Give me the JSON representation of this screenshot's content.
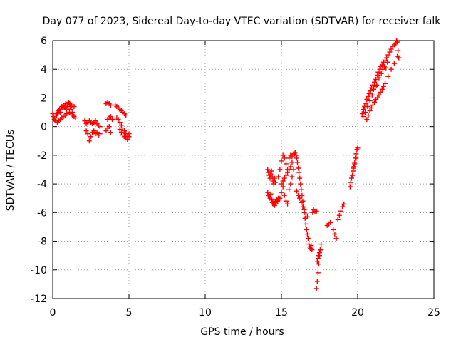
{
  "chart_data": {
    "type": "scatter",
    "title": "Day 077 of 2023, Sidereal Day-to-day VTEC variation (SDTVAR) for receiver falk",
    "xlabel": "GPS time / hours",
    "ylabel": "SDTVAR / TECUs",
    "xlim": [
      0,
      25
    ],
    "ylim": [
      -12,
      6
    ],
    "x_ticks": [
      "0",
      "5",
      "10",
      "15",
      "20",
      "25"
    ],
    "y_ticks": [
      "6",
      "4",
      "2",
      "0",
      "-2",
      "-4",
      "-6",
      "-8",
      "-10",
      "-12"
    ],
    "grid": true,
    "legend": "none",
    "marker": "plus",
    "color": "#ff0000",
    "series": [
      {
        "x": [
          0.0,
          0.05,
          0.1,
          0.15,
          0.2,
          0.25,
          0.3,
          0.35,
          0.4,
          0.45,
          0.5,
          0.55,
          0.6,
          0.65,
          0.7,
          0.75,
          0.8,
          0.85,
          0.9,
          0.95,
          1.0,
          1.05,
          1.1,
          1.15,
          1.2,
          1.25,
          1.3,
          1.35,
          1.4,
          0.3,
          0.4,
          0.5,
          0.6,
          0.7,
          0.8,
          0.9,
          1.0,
          1.1,
          1.2,
          1.3,
          1.4,
          1.5
        ],
        "y": [
          0.9,
          0.7,
          0.5,
          0.4,
          0.6,
          0.8,
          0.9,
          1.0,
          1.1,
          1.2,
          1.0,
          1.3,
          1.4,
          1.3,
          1.5,
          1.3,
          1.4,
          1.6,
          1.2,
          1.5,
          1.3,
          1.7,
          1.6,
          1.4,
          1.2,
          1.5,
          1.0,
          0.8,
          1.4,
          0.3,
          0.4,
          0.5,
          0.6,
          0.7,
          0.8,
          0.9,
          0.9,
          1.0,
          0.9,
          0.8,
          0.7,
          0.6
        ]
      },
      {
        "x": [
          2.1,
          2.2,
          2.3,
          2.4,
          2.5,
          2.6,
          2.7,
          2.8,
          2.9,
          3.0,
          3.1,
          2.2,
          2.3,
          2.4,
          2.5,
          2.6,
          2.7,
          2.8,
          2.9,
          3.0,
          3.1
        ],
        "y": [
          0.4,
          0.2,
          0.3,
          0.4,
          0.3,
          0.2,
          0.3,
          0.4,
          0.2,
          0.1,
          0.0,
          -0.3,
          -0.5,
          -1.0,
          -0.7,
          -0.4,
          -0.3,
          -0.5,
          -0.4,
          -0.6,
          -0.5
        ]
      },
      {
        "x": [
          3.5,
          3.6,
          3.7,
          3.8,
          3.6,
          3.7,
          3.8,
          3.9,
          3.5,
          3.6,
          3.7,
          3.8
        ],
        "y": [
          1.6,
          1.7,
          1.6,
          1.5,
          0.5,
          0.6,
          0.7,
          0.5,
          -0.3,
          -0.1,
          0.0,
          -0.4
        ]
      },
      {
        "x": [
          4.1,
          4.2,
          4.3,
          4.4,
          4.5,
          4.6,
          4.7,
          4.8,
          4.2,
          4.3,
          4.4,
          4.5,
          4.6,
          4.7,
          4.8,
          4.9,
          5.0,
          4.4,
          4.5,
          4.6,
          4.7,
          4.8,
          4.9,
          5.0
        ],
        "y": [
          1.5,
          1.4,
          1.3,
          1.2,
          1.1,
          1.0,
          0.9,
          0.8,
          0.6,
          0.5,
          0.3,
          0.1,
          -0.1,
          -0.3,
          -0.5,
          -0.6,
          -0.5,
          -0.2,
          -0.4,
          -0.6,
          -0.7,
          -0.8,
          -0.9,
          -0.7
        ]
      },
      {
        "x": [
          14.1,
          14.15,
          14.2,
          14.25,
          14.3,
          14.35,
          14.4,
          14.45,
          14.5,
          14.55,
          14.6,
          14.1,
          14.15,
          14.2,
          14.25,
          14.3,
          14.35,
          14.4,
          14.45,
          14.5,
          14.55,
          14.6,
          14.65,
          14.7,
          14.75,
          14.8
        ],
        "y": [
          -3.0,
          -3.2,
          -3.4,
          -3.6,
          -3.3,
          -3.1,
          -3.5,
          -3.8,
          -4.0,
          -3.6,
          -3.9,
          -4.6,
          -4.8,
          -4.9,
          -5.0,
          -4.7,
          -5.1,
          -5.3,
          -5.4,
          -5.2,
          -5.5,
          -5.3,
          -5.4,
          -5.1,
          -5.2,
          -5.0
        ]
      },
      {
        "x": [
          14.8,
          14.9,
          15.0,
          15.1,
          15.2,
          15.3,
          15.4,
          15.5,
          15.6,
          15.7,
          15.8,
          14.9,
          15.0,
          15.1,
          15.2,
          15.3,
          15.4,
          15.5,
          15.6,
          15.7,
          15.8,
          15.0,
          15.1,
          15.2,
          15.3,
          15.4,
          15.5,
          15.6,
          15.7
        ],
        "y": [
          -3.5,
          -3.0,
          -2.4,
          -2.0,
          -2.2,
          -2.6,
          -3.0,
          -2.2,
          -2.0,
          -2.1,
          -1.9,
          -5.0,
          -4.6,
          -4.2,
          -4.8,
          -5.2,
          -5.4,
          -4.4,
          -4.0,
          -3.5,
          -3.0,
          -4.0,
          -3.8,
          -3.6,
          -3.4,
          -3.2,
          -3.0,
          -2.8,
          -2.5
        ]
      },
      {
        "x": [
          15.85,
          15.9,
          15.95,
          16.0,
          16.05,
          16.1,
          16.15,
          16.2,
          16.25,
          16.3,
          16.35,
          16.4,
          16.45,
          16.5,
          16.55,
          16.6,
          16.65,
          16.7,
          16.75,
          16.8,
          16.85,
          16.9,
          16.95,
          17.0,
          17.05,
          17.1,
          17.2,
          17.3,
          16.0,
          16.1,
          16.2,
          16.3,
          16.4,
          16.5,
          16.6,
          16.7
        ],
        "y": [
          -1.9,
          -1.8,
          -2.0,
          -2.2,
          -2.5,
          -2.9,
          -3.2,
          -3.6,
          -4.0,
          -4.4,
          -4.8,
          -5.2,
          -5.6,
          -6.0,
          -6.4,
          -6.8,
          -7.2,
          -7.5,
          -7.8,
          -8.2,
          -8.4,
          -8.5,
          -8.3,
          -8.6,
          -6.0,
          -5.8,
          -5.9,
          -5.9,
          -4.5,
          -4.8,
          -5.0,
          -5.3,
          -5.6,
          -5.8,
          -6.1,
          -6.3
        ]
      },
      {
        "x": [
          17.3,
          17.35,
          17.4,
          17.45,
          17.5,
          17.55,
          17.6,
          17.35,
          17.4,
          17.45,
          17.5,
          17.55
        ],
        "y": [
          -11.3,
          -10.8,
          -10.2,
          -9.6,
          -9.0,
          -8.6,
          -8.2,
          -9.4,
          -9.2,
          -9.0,
          -8.8,
          -8.6
        ]
      },
      {
        "x": [
          18.0,
          18.1,
          18.2,
          18.4,
          18.5,
          18.6,
          18.7,
          18.8,
          18.9,
          19.0,
          19.1
        ],
        "y": [
          -6.9,
          -6.8,
          -6.7,
          -7.2,
          -7.5,
          -7.8,
          -6.5,
          -6.2,
          -5.9,
          -5.6,
          -5.4
        ]
      },
      {
        "x": [
          19.5,
          19.55,
          19.6,
          19.65,
          19.7,
          19.75,
          19.8,
          19.85,
          19.9,
          19.95,
          20.0,
          19.7,
          19.8,
          19.9
        ],
        "y": [
          -4.2,
          -3.9,
          -3.6,
          -3.4,
          -3.1,
          -2.8,
          -2.5,
          -2.2,
          -1.9,
          -1.6,
          -1.5,
          -2.9,
          -2.6,
          -2.2
        ]
      },
      {
        "x": [
          20.3,
          20.35,
          20.4,
          20.45,
          20.5,
          20.55,
          20.6,
          20.65,
          20.7,
          20.75,
          20.8,
          20.85,
          20.9,
          20.95,
          21.0,
          21.05,
          21.1,
          21.15,
          21.2,
          21.25,
          21.3,
          21.35,
          21.4,
          21.45,
          21.5,
          21.55,
          21.6,
          21.65,
          21.7,
          21.75,
          21.8,
          21.85,
          21.9,
          21.95,
          22.0,
          22.1,
          22.2,
          22.3,
          22.4,
          22.5,
          22.55,
          22.6,
          22.65,
          22.7,
          20.6,
          20.7,
          20.8,
          20.9,
          21.0,
          21.1,
          21.2,
          21.3,
          21.4,
          21.5,
          21.6,
          21.7,
          21.8,
          22.0,
          22.2,
          22.4,
          22.6
        ],
        "y": [
          0.9,
          0.7,
          1.2,
          1.4,
          1.0,
          1.6,
          1.9,
          1.4,
          2.1,
          2.3,
          1.8,
          2.5,
          2.7,
          2.2,
          2.9,
          2.6,
          3.1,
          2.8,
          3.3,
          2.9,
          3.6,
          3.8,
          3.4,
          4.0,
          4.2,
          3.7,
          4.3,
          4.0,
          4.5,
          4.2,
          4.6,
          4.1,
          4.8,
          4.5,
          5.0,
          5.2,
          5.4,
          5.6,
          5.7,
          5.8,
          6.0,
          5.9,
          5.3,
          4.8,
          0.5,
          0.8,
          1.1,
          1.3,
          1.5,
          1.7,
          1.9,
          2.0,
          2.2,
          2.4,
          2.6,
          2.8,
          3.0,
          3.5,
          4.0,
          4.4,
          4.9
        ]
      }
    ]
  }
}
